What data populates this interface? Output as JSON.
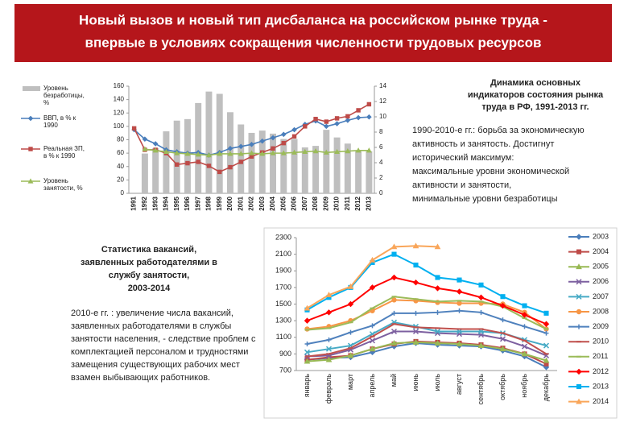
{
  "header": {
    "title": [
      "Новый вызов и новый тип дисбаланса на российском рынке труда -",
      "впервые в условиях сокращения численности трудовых ресурсов"
    ]
  },
  "text_blocks": {
    "indicators_title": [
      "Динамика основных",
      "индикаторов состояния рынка",
      "труда в РФ, 1991-2013 гг."
    ],
    "indicators_text": [
      "1990-2010-е гг.: борьба за экономическую",
      "активность и занятость. Достигнут",
      "исторический максимум:",
      " максимальные уровни экономической",
      "активности и занятости,",
      "минимальные уровни безработицы"
    ],
    "vacancies_title": [
      "Статистика вакансий,",
      "заявленных работодателями в",
      "службу занятости,",
      "2003-2014"
    ],
    "vacancies_text": [
      "2010-е гг. : увеличение числа вакансий,",
      "заявленных работодателями в службы",
      "занятости населения, - следствие проблем с",
      "комплектацией персоналом и трудностями",
      "замещения существующих рабочих мест",
      "взамен выбывающих работников."
    ]
  },
  "chart_data": [
    {
      "type": "combo",
      "grid": false,
      "categories": [
        "1991",
        "1992",
        "1993",
        "1994",
        "1995",
        "1996",
        "1997",
        "1998",
        "1999",
        "2000",
        "2001",
        "2002",
        "2003",
        "2004",
        "2005",
        "2006",
        "2007",
        "2008",
        "2009",
        "2010",
        "2011",
        "2012",
        "2013"
      ],
      "ylim": [
        0,
        160
      ],
      "yticks": [
        0,
        20,
        40,
        60,
        80,
        100,
        120,
        140,
        160
      ],
      "y2lim": [
        0,
        14
      ],
      "y2ticks": [
        0,
        2,
        4,
        6,
        8,
        10,
        12,
        14
      ],
      "series": [
        {
          "name": "Уровень безработицы, %",
          "kind": "bar",
          "axis": "y2",
          "color": "#bfbfbf",
          "values": [
            null,
            5.2,
            5.9,
            8.1,
            9.5,
            9.7,
            11.8,
            13.3,
            13.0,
            10.6,
            9.0,
            7.9,
            8.2,
            7.8,
            7.1,
            7.1,
            6.0,
            6.2,
            8.3,
            7.3,
            6.5,
            5.5,
            5.5
          ]
        },
        {
          "name": "ВВП, в % к 1990",
          "kind": "line",
          "marker": "diamond",
          "color": "#4a7ebb",
          "values": [
            95,
            81,
            74,
            65,
            62,
            60,
            61,
            57,
            61,
            67,
            70,
            73,
            78,
            83,
            88,
            95,
            103,
            108,
            100,
            104,
            109,
            113,
            114
          ]
        },
        {
          "name": "Реальная ЗП, в % к 1990",
          "kind": "line",
          "marker": "square",
          "color": "#be4b48",
          "values": [
            97,
            65,
            65,
            60,
            43,
            45,
            47,
            41,
            32,
            39,
            47,
            55,
            61,
            67,
            75,
            85,
            100,
            111,
            107,
            112,
            115,
            124,
            133
          ]
        },
        {
          "name": "Уровень занятости, %",
          "kind": "line",
          "marker": "triangle",
          "color": "#9bbb59",
          "values": [
            null,
            66,
            64,
            62,
            60,
            59,
            58,
            57,
            59,
            59,
            59,
            60,
            59,
            60,
            60,
            61,
            62,
            63,
            61,
            62,
            63,
            64,
            64
          ]
        }
      ]
    },
    {
      "type": "line",
      "grid": false,
      "categories": [
        "январь",
        "февраль",
        "март",
        "апрель",
        "май",
        "июнь",
        "июль",
        "август",
        "сентябрь",
        "октябрь",
        "ноябрь",
        "декабрь"
      ],
      "ylim": [
        700,
        2300
      ],
      "yticks": [
        700,
        900,
        1100,
        1300,
        1500,
        1700,
        1900,
        2100,
        2300
      ],
      "series": [
        {
          "name": "2003",
          "marker": "diamond",
          "color": "#4a7ebb",
          "values": [
            830,
            850,
            860,
            920,
            990,
            1030,
            1010,
            1000,
            990,
            940,
            870,
            740
          ]
        },
        {
          "name": "2004",
          "marker": "square",
          "color": "#be4b48",
          "values": [
            830,
            860,
            880,
            960,
            1020,
            1050,
            1040,
            1030,
            1010,
            970,
            900,
            780
          ]
        },
        {
          "name": "2005",
          "marker": "triangle",
          "color": "#98b954",
          "values": [
            810,
            830,
            880,
            960,
            1030,
            1040,
            1030,
            1020,
            1000,
            960,
            900,
            820
          ]
        },
        {
          "name": "2006",
          "marker": "x",
          "color": "#7d60a0",
          "values": [
            870,
            880,
            950,
            1060,
            1170,
            1170,
            1150,
            1140,
            1130,
            1080,
            990,
            880
          ]
        },
        {
          "name": "2007",
          "marker": "x",
          "color": "#46aac5",
          "values": [
            920,
            960,
            1000,
            1140,
            1280,
            1230,
            1170,
            1170,
            1170,
            1150,
            1070,
            1000
          ]
        },
        {
          "name": "2008",
          "marker": "circle",
          "color": "#f79646",
          "values": [
            1200,
            1230,
            1300,
            1420,
            1550,
            1540,
            1520,
            1510,
            1510,
            1500,
            1400,
            1200
          ]
        },
        {
          "name": "2009",
          "marker": "plus",
          "color": "#4f81bd",
          "values": [
            1020,
            1070,
            1160,
            1240,
            1390,
            1390,
            1400,
            1420,
            1400,
            1310,
            1230,
            1150
          ]
        },
        {
          "name": "2010",
          "marker": "minus",
          "color": "#c0504d",
          "values": [
            870,
            900,
            970,
            1110,
            1260,
            1220,
            1210,
            1200,
            1200,
            1150,
            1060,
            900
          ]
        },
        {
          "name": "2011",
          "marker": "minus",
          "color": "#9bbb59",
          "values": [
            1190,
            1210,
            1280,
            1450,
            1590,
            1560,
            1530,
            1540,
            1530,
            1470,
            1330,
            1200
          ]
        },
        {
          "name": "2012",
          "marker": "diamond",
          "color": "#ff0000",
          "values": [
            1300,
            1400,
            1500,
            1700,
            1820,
            1760,
            1690,
            1650,
            1580,
            1480,
            1370,
            1260
          ]
        },
        {
          "name": "2013",
          "marker": "square",
          "color": "#00b0f0",
          "values": [
            1430,
            1580,
            1700,
            2000,
            2100,
            1970,
            1820,
            1790,
            1730,
            1590,
            1480,
            1390
          ]
        },
        {
          "name": "2014",
          "marker": "triangle",
          "color": "#f9a65a",
          "values": [
            1450,
            1610,
            1710,
            2030,
            2190,
            2200,
            2190,
            null,
            null,
            null,
            null,
            null
          ]
        }
      ]
    }
  ]
}
